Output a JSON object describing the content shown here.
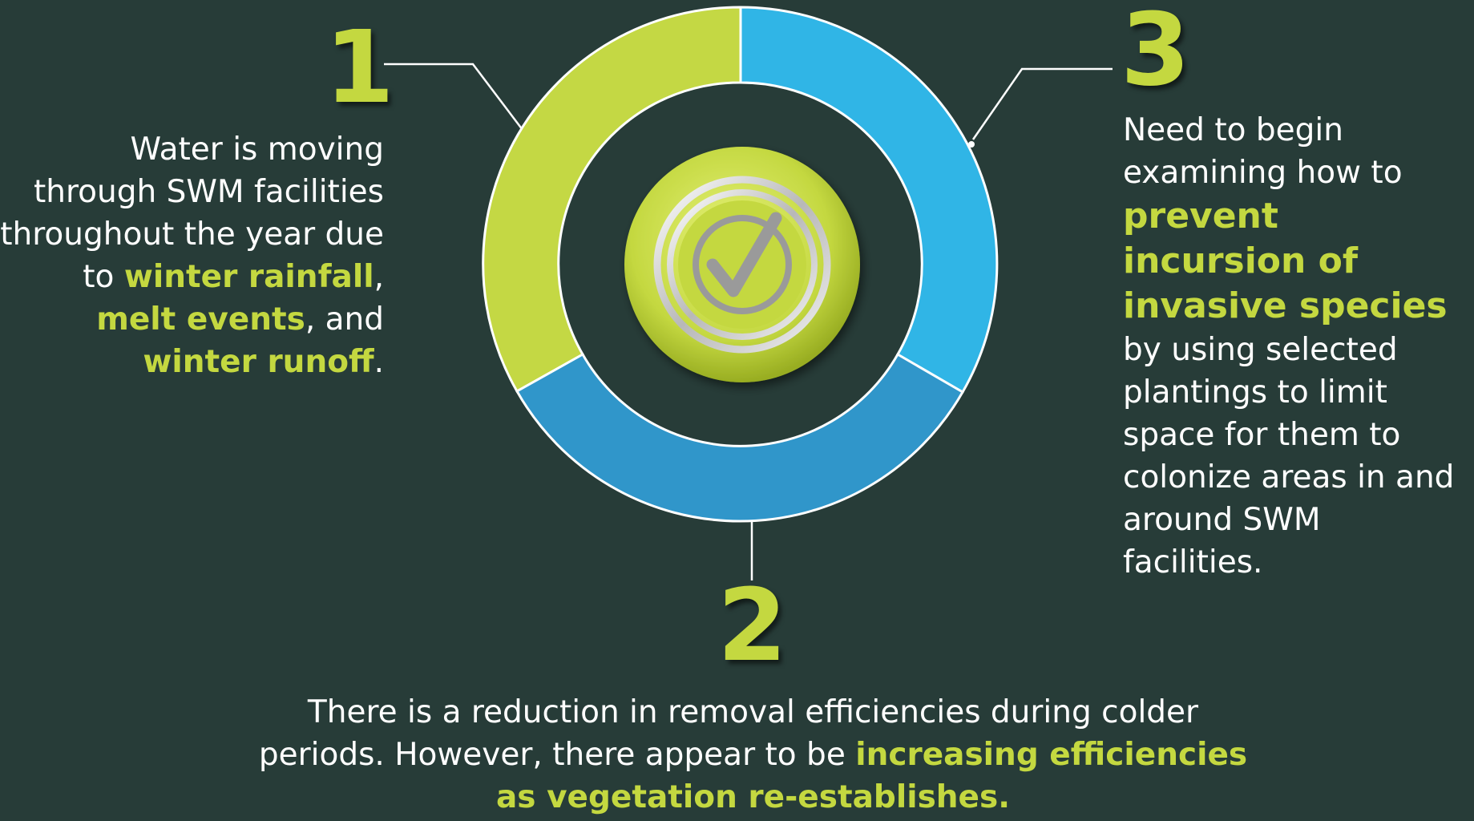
{
  "colors": {
    "background": "#273c38",
    "accent_green": "#c4d840",
    "ring_blue_light": "#30b5e6",
    "ring_blue_dark": "#3096ca",
    "ring_green": "#c4d844",
    "outline_white": "#ffffff",
    "check_gray": "#9a9a9a"
  },
  "center_icon": "checkmark-button-icon",
  "ring_segments": [
    {
      "key": "seg1",
      "color_name": "ring_green"
    },
    {
      "key": "seg3",
      "color_name": "ring_blue_light"
    },
    {
      "key": "seg2",
      "color_name": "ring_blue_dark"
    }
  ],
  "point1": {
    "number": "1",
    "lead": "Water is moving through SWM facilities throughout the year due to ",
    "h1": "winter rainfall",
    "sep1": ", ",
    "h2": "melt events",
    "sep2": ", and ",
    "h3": "winter runoff",
    "end": "."
  },
  "point2": {
    "number": "2",
    "lead": "There is a reduction in removal efficiencies during colder periods. However, there appear to be ",
    "h1": "increasing efficiencies as vegetation re-establishes."
  },
  "point3": {
    "number": "3",
    "lead": "Need to begin examining how to ",
    "h1": "prevent incursion of invasive species",
    "rest": " by using selected plantings to limit space for them to colonize areas in and around SWM facilities."
  }
}
